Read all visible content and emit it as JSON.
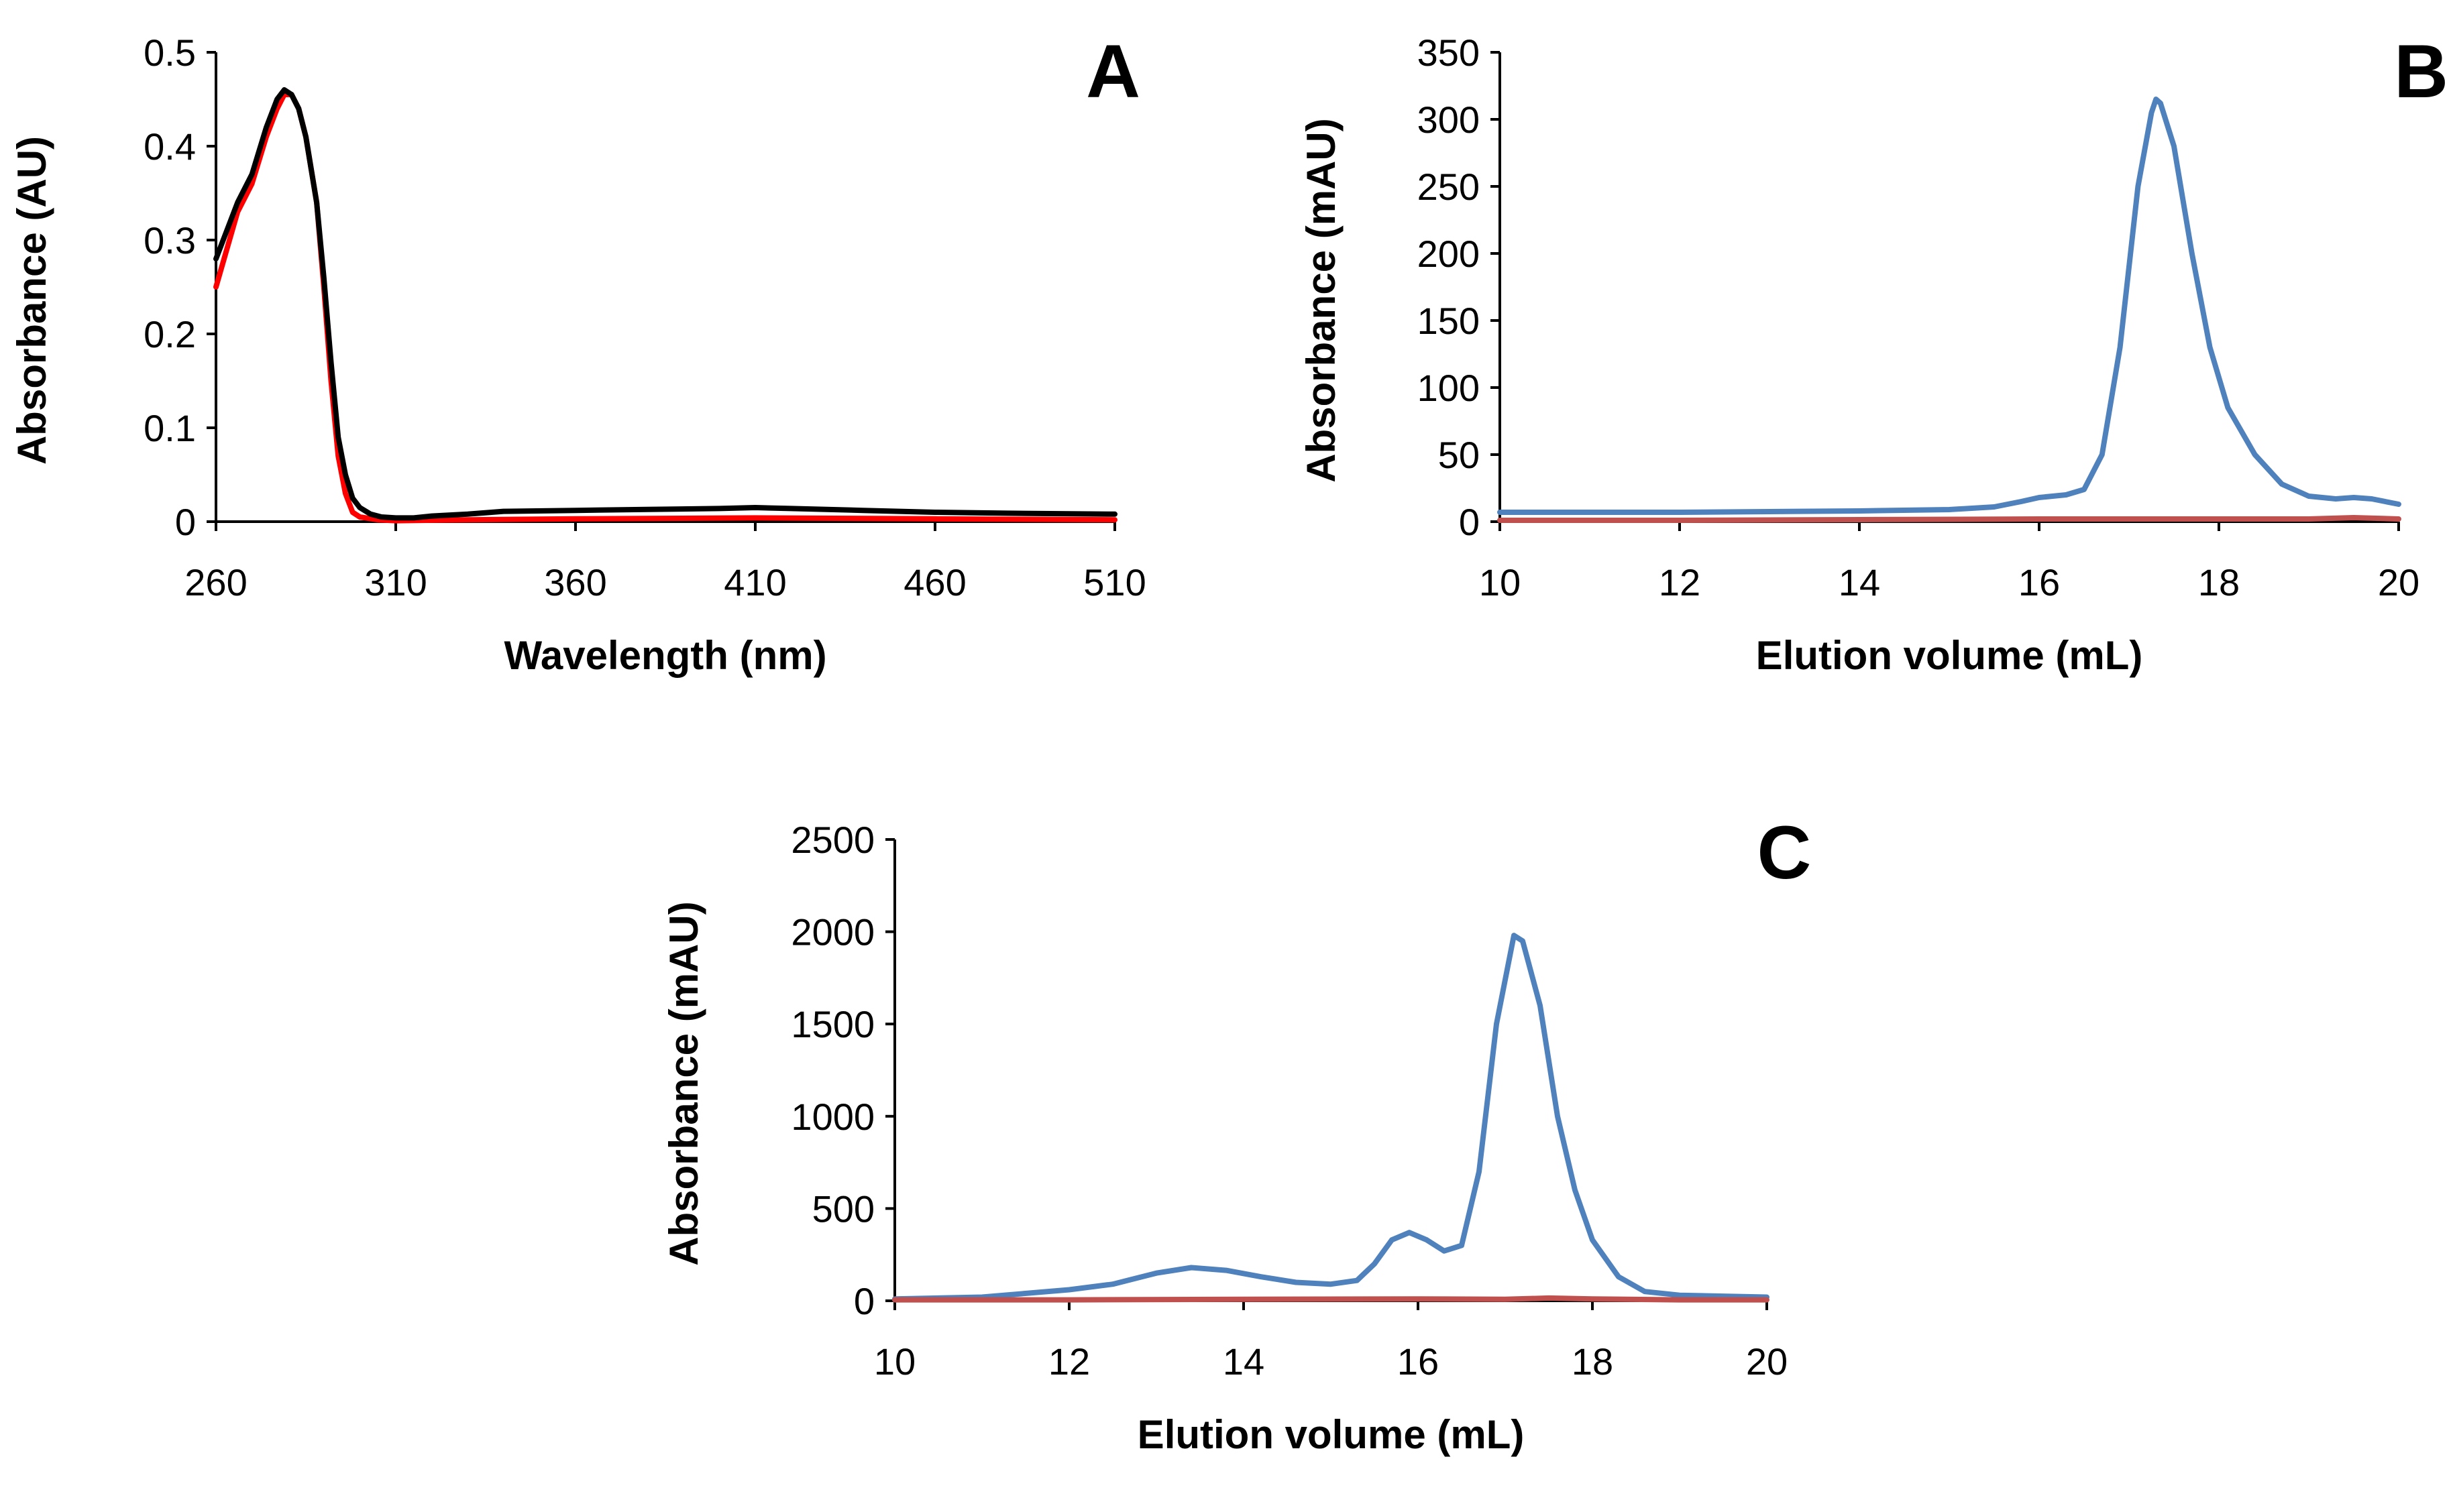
{
  "chart_data": [
    {
      "panel": "A",
      "type": "line",
      "xlabel": "Wavelength  (nm)",
      "ylabel": "Absorbance  (AU)",
      "xlim": [
        260,
        510
      ],
      "ylim": [
        0,
        0.5
      ],
      "xticks": [
        260,
        310,
        360,
        410,
        460,
        510
      ],
      "yticks": [
        0,
        0.1,
        0.2,
        0.3,
        0.4,
        0.5
      ],
      "yticklabels": [
        "0",
        "0.1",
        "0.2",
        "0.3",
        "0.4",
        "0.5"
      ],
      "grid": false,
      "series": [
        {
          "name": "red trace",
          "color": "#ff0000",
          "points": [
            [
              260,
              0.25
            ],
            [
              263,
              0.29
            ],
            [
              266,
              0.33
            ],
            [
              270,
              0.36
            ],
            [
              274,
              0.41
            ],
            [
              277,
              0.44
            ],
            [
              279,
              0.455
            ],
            [
              281,
              0.455
            ],
            [
              283,
              0.44
            ],
            [
              285,
              0.41
            ],
            [
              288,
              0.34
            ],
            [
              290,
              0.25
            ],
            [
              292,
              0.15
            ],
            [
              294,
              0.07
            ],
            [
              296,
              0.03
            ],
            [
              298,
              0.01
            ],
            [
              300,
              0.005
            ],
            [
              305,
              0.002
            ],
            [
              310,
              0.001
            ],
            [
              330,
              0.002
            ],
            [
              360,
              0.003
            ],
            [
              410,
              0.004
            ],
            [
              460,
              0.003
            ],
            [
              510,
              0.002
            ]
          ]
        },
        {
          "name": "black trace",
          "color": "#000000",
          "points": [
            [
              260,
              0.28
            ],
            [
              263,
              0.31
            ],
            [
              266,
              0.34
            ],
            [
              270,
              0.37
            ],
            [
              274,
              0.42
            ],
            [
              277,
              0.45
            ],
            [
              279,
              0.46
            ],
            [
              281,
              0.455
            ],
            [
              283,
              0.44
            ],
            [
              285,
              0.41
            ],
            [
              288,
              0.34
            ],
            [
              290,
              0.26
            ],
            [
              292,
              0.17
            ],
            [
              294,
              0.09
            ],
            [
              296,
              0.05
            ],
            [
              298,
              0.025
            ],
            [
              300,
              0.015
            ],
            [
              303,
              0.008
            ],
            [
              306,
              0.005
            ],
            [
              310,
              0.004
            ],
            [
              315,
              0.004
            ],
            [
              320,
              0.006
            ],
            [
              330,
              0.008
            ],
            [
              340,
              0.011
            ],
            [
              360,
              0.012
            ],
            [
              380,
              0.013
            ],
            [
              400,
              0.014
            ],
            [
              410,
              0.015
            ],
            [
              420,
              0.014
            ],
            [
              440,
              0.012
            ],
            [
              460,
              0.01
            ],
            [
              480,
              0.009
            ],
            [
              510,
              0.008
            ]
          ]
        }
      ]
    },
    {
      "panel": "B",
      "type": "line",
      "xlabel": "Elution volume (mL)",
      "ylabel": "Absorbance  (mAU)",
      "xlim": [
        10,
        20
      ],
      "ylim": [
        0,
        350
      ],
      "xticks": [
        10,
        12,
        14,
        16,
        18,
        20
      ],
      "yticks": [
        0,
        50,
        100,
        150,
        200,
        250,
        300,
        350
      ],
      "yticklabels": [
        "0",
        "50",
        "100",
        "150",
        "200",
        "250",
        "300",
        "350"
      ],
      "grid": false,
      "series": [
        {
          "name": "blue trace",
          "color": "#4f81bd",
          "points": [
            [
              10,
              7
            ],
            [
              11,
              7
            ],
            [
              12,
              7
            ],
            [
              13,
              7.5
            ],
            [
              14,
              8
            ],
            [
              15,
              9
            ],
            [
              15.5,
              11
            ],
            [
              15.8,
              15
            ],
            [
              16,
              18
            ],
            [
              16.3,
              20
            ],
            [
              16.5,
              24
            ],
            [
              16.7,
              50
            ],
            [
              16.9,
              130
            ],
            [
              17.1,
              250
            ],
            [
              17.25,
              305
            ],
            [
              17.3,
              315
            ],
            [
              17.35,
              312
            ],
            [
              17.5,
              280
            ],
            [
              17.7,
              200
            ],
            [
              17.9,
              130
            ],
            [
              18.1,
              85
            ],
            [
              18.4,
              50
            ],
            [
              18.7,
              28
            ],
            [
              19,
              19
            ],
            [
              19.3,
              17
            ],
            [
              19.5,
              18
            ],
            [
              19.7,
              17
            ],
            [
              20,
              13
            ]
          ]
        },
        {
          "name": "red trace",
          "color": "#c0504d",
          "points": [
            [
              10,
              1
            ],
            [
              12,
              1
            ],
            [
              14,
              1.5
            ],
            [
              16,
              2
            ],
            [
              17,
              2
            ],
            [
              18,
              2
            ],
            [
              19,
              2
            ],
            [
              19.5,
              3
            ],
            [
              20,
              2
            ]
          ]
        }
      ]
    },
    {
      "panel": "C",
      "type": "line",
      "xlabel": "Elution volume (mL)",
      "ylabel": "Absorbance  (mAU)",
      "xlim": [
        10,
        20
      ],
      "ylim": [
        0,
        2500
      ],
      "xticks": [
        10,
        12,
        14,
        16,
        18,
        20
      ],
      "yticks": [
        0,
        500,
        1000,
        1500,
        2000,
        2500
      ],
      "yticklabels": [
        "0",
        "500",
        "1000",
        "1500",
        "2000",
        "2500"
      ],
      "grid": false,
      "series": [
        {
          "name": "blue trace",
          "color": "#4f81bd",
          "points": [
            [
              10,
              10
            ],
            [
              11,
              20
            ],
            [
              12,
              60
            ],
            [
              12.5,
              90
            ],
            [
              13,
              150
            ],
            [
              13.4,
              180
            ],
            [
              13.8,
              165
            ],
            [
              14.2,
              130
            ],
            [
              14.6,
              100
            ],
            [
              15,
              90
            ],
            [
              15.3,
              110
            ],
            [
              15.5,
              200
            ],
            [
              15.7,
              330
            ],
            [
              15.9,
              370
            ],
            [
              16.1,
              330
            ],
            [
              16.3,
              270
            ],
            [
              16.5,
              300
            ],
            [
              16.7,
              700
            ],
            [
              16.9,
              1500
            ],
            [
              17.1,
              1980
            ],
            [
              17.2,
              1950
            ],
            [
              17.4,
              1600
            ],
            [
              17.6,
              1000
            ],
            [
              17.8,
              600
            ],
            [
              18,
              330
            ],
            [
              18.3,
              130
            ],
            [
              18.6,
              50
            ],
            [
              19,
              30
            ],
            [
              19.5,
              25
            ],
            [
              20,
              20
            ]
          ]
        },
        {
          "name": "red trace",
          "color": "#c0504d",
          "points": [
            [
              10,
              5
            ],
            [
              12,
              5
            ],
            [
              14,
              8
            ],
            [
              16,
              10
            ],
            [
              17,
              8
            ],
            [
              17.5,
              15
            ],
            [
              18,
              10
            ],
            [
              19,
              5
            ],
            [
              20,
              5
            ]
          ]
        }
      ]
    }
  ]
}
